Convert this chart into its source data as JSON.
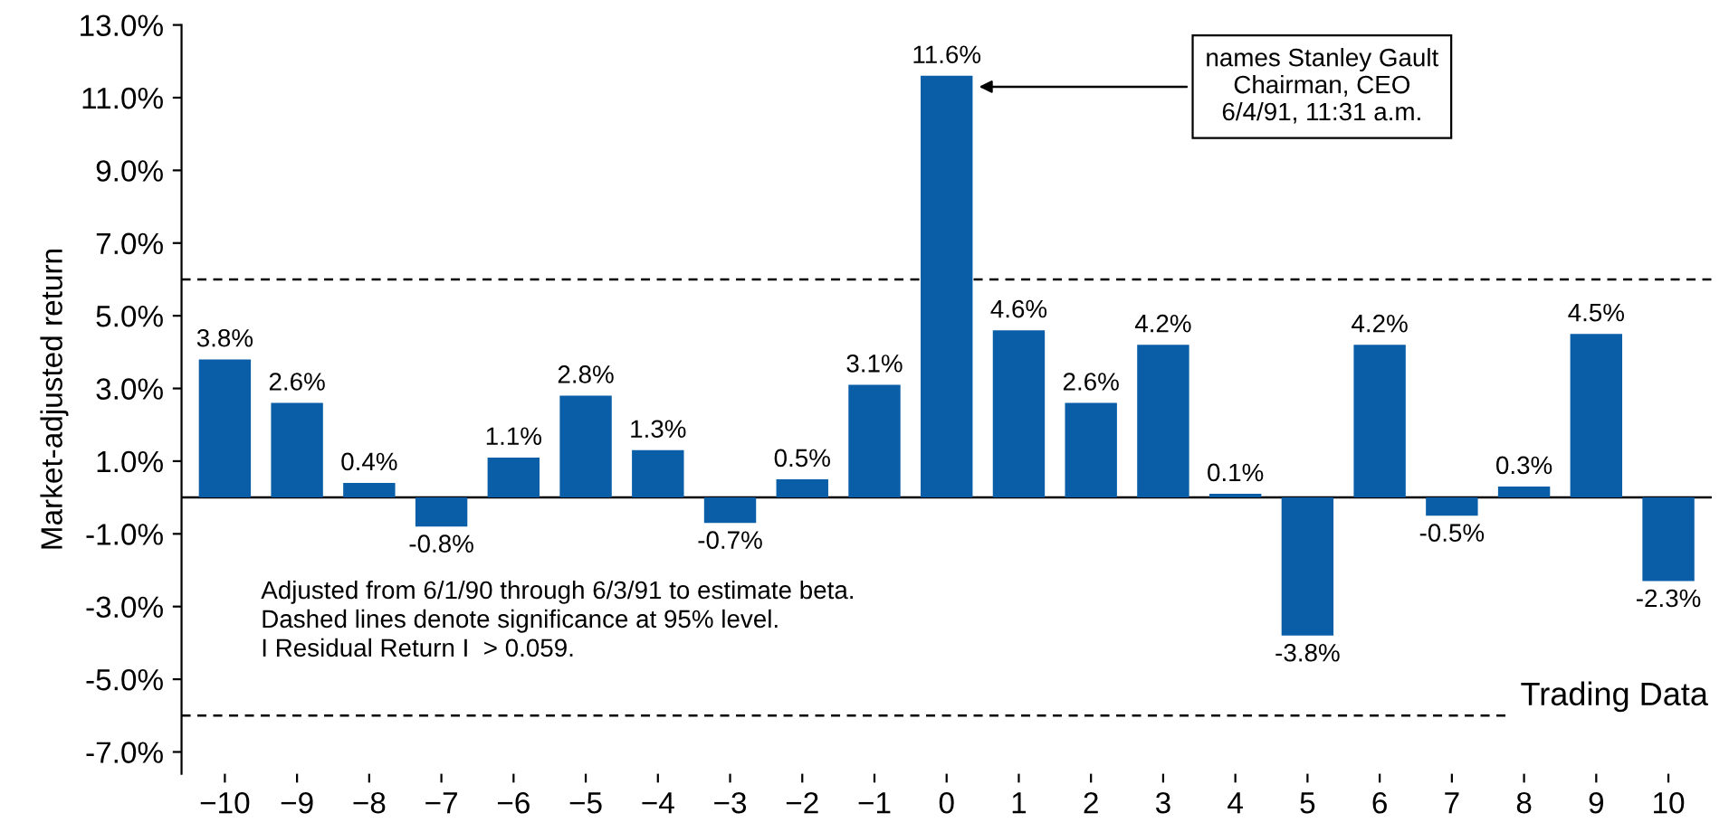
{
  "chart_data": {
    "type": "bar",
    "ylabel": "Market-adjusted return",
    "categories": [
      "−10",
      "−9",
      "−8",
      "−7",
      "−6",
      "−5",
      "−4",
      "−3",
      "−2",
      "−1",
      "0",
      "1",
      "2",
      "3",
      "4",
      "5",
      "6",
      "7",
      "8",
      "9",
      "10"
    ],
    "values": [
      3.8,
      2.6,
      0.4,
      -0.8,
      1.1,
      2.8,
      1.3,
      -0.7,
      0.5,
      3.1,
      11.6,
      4.6,
      2.6,
      4.2,
      0.1,
      -3.8,
      4.2,
      -0.5,
      0.3,
      4.5,
      -2.3
    ],
    "value_labels": [
      "3.8%",
      "2.6%",
      "0.4%",
      "-0.8%",
      "1.1%",
      "2.8%",
      "1.3%",
      "-0.7%",
      "0.5%",
      "3.1%",
      "11.6%",
      "4.6%",
      "2.6%",
      "4.2%",
      "0.1%",
      "-3.8%",
      "4.2%",
      "-0.5%",
      "0.3%",
      "4.5%",
      "-2.3%"
    ],
    "color": "#0a5ea8",
    "ylim": [
      -7.6,
      13
    ],
    "yticks": [
      {
        "value": -7,
        "label": "-7.0%"
      },
      {
        "value": -5,
        "label": "-5.0%"
      },
      {
        "value": -3,
        "label": "-3.0%"
      },
      {
        "value": -1,
        "label": "-1.0%"
      },
      {
        "value": 1,
        "label": "1.0%"
      },
      {
        "value": 3,
        "label": "3.0%"
      },
      {
        "value": 5,
        "label": "5.0%"
      },
      {
        "value": 7,
        "label": "7.0%"
      },
      {
        "value": 9,
        "label": "9.0%"
      },
      {
        "value": 11,
        "label": "11.0%"
      },
      {
        "value": 13,
        "label": "13.0%"
      }
    ],
    "ref_lines": [
      {
        "axis": "y",
        "value": 6,
        "label": null,
        "line_style": "dashed",
        "color": "#000000"
      },
      {
        "axis": "y",
        "value": -6,
        "label": "Trading Data",
        "line_style": "dashed",
        "color": "#000000"
      },
      {
        "axis": "y",
        "value": 0,
        "label": null,
        "line_style": "solid",
        "color": "#000000"
      }
    ],
    "annotations": [
      "names Stanley Gault\nChairman, CEO\n6/4/91, 11:31 a.m.",
      "Adjusted from 6/1/90 through 6/3/91 to estimate beta.\nDashed lines denote significance at 95% level.\nI Residual Return I  > 0.059."
    ],
    "grid": false,
    "legend": false
  }
}
